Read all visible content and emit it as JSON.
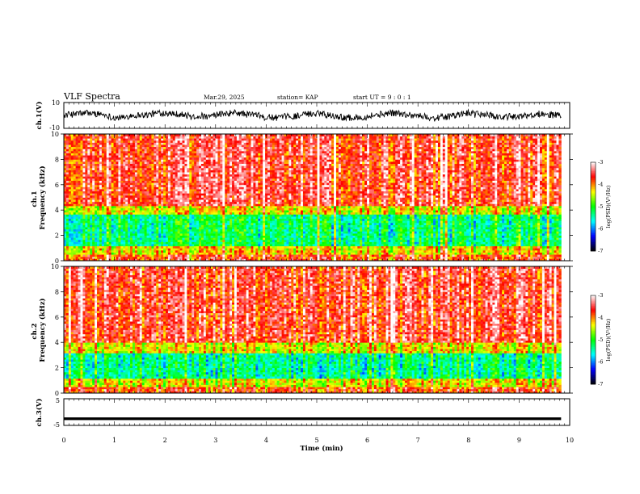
{
  "header": {
    "title": "VLF Spectra",
    "date": "Mar.29, 2025",
    "station": "station= KAP",
    "start_ut": "start  UT =  9 : 0 : 1"
  },
  "chart_data": [
    {
      "type": "line",
      "panel": "ch1-waveform",
      "ylabel": "ch.1(V)",
      "ylim": [
        -10,
        10
      ],
      "tick_labels": [
        "10",
        "-10"
      ],
      "x_range_min": [
        0,
        9.83
      ],
      "noise_amplitude": 5.0,
      "color": "#000000"
    },
    {
      "type": "heatmap",
      "panel": "ch1-spectrogram",
      "ylabel": "ch.1\nFrequency (kHz)",
      "ylim_khz": [
        0,
        10
      ],
      "y_tick_labels": [
        "0",
        "2",
        "4",
        "6",
        "8",
        "10"
      ],
      "x_range_min": [
        0,
        9.83
      ],
      "bands": [
        {
          "from_khz": 0.0,
          "to_khz": 0.5,
          "log_psd": -3.8
        },
        {
          "from_khz": 0.5,
          "to_khz": 1.2,
          "log_psd": -4.3
        },
        {
          "from_khz": 1.2,
          "to_khz": 3.6,
          "log_psd": -5.3
        },
        {
          "from_khz": 3.6,
          "to_khz": 4.3,
          "log_psd": -4.4
        },
        {
          "from_khz": 4.3,
          "to_khz": 10.0,
          "log_psd": -3.6
        }
      ],
      "colorbar": {
        "label": "log(PSD)(V²/Hz)",
        "min": -7,
        "max": -3,
        "ticks": [
          "-3",
          "-4",
          "-5",
          "-6",
          "-7"
        ],
        "stops": [
          "#000000",
          "#0000ff",
          "#00ffff",
          "#00ff00",
          "#ffff00",
          "#ff0000",
          "#ffffff"
        ]
      }
    },
    {
      "type": "heatmap",
      "panel": "ch2-spectrogram",
      "ylabel": "ch.2\nFrequency (kHz)",
      "ylim_khz": [
        0,
        10
      ],
      "y_tick_labels": [
        "0",
        "2",
        "4",
        "6",
        "8",
        "10"
      ],
      "x_range_min": [
        0,
        9.83
      ],
      "bands": [
        {
          "from_khz": 0.0,
          "to_khz": 0.5,
          "log_psd": -3.8
        },
        {
          "from_khz": 0.5,
          "to_khz": 1.2,
          "log_psd": -4.4
        },
        {
          "from_khz": 1.2,
          "to_khz": 3.2,
          "log_psd": -5.4
        },
        {
          "from_khz": 3.2,
          "to_khz": 4.0,
          "log_psd": -4.4
        },
        {
          "from_khz": 4.0,
          "to_khz": 10.0,
          "log_psd": -3.6
        }
      ],
      "colorbar": {
        "label": "log(PSD)(V²/Hz)",
        "min": -7,
        "max": -3,
        "ticks": [
          "-3",
          "-4",
          "-5",
          "-6",
          "-7"
        ],
        "stops": [
          "#000000",
          "#0000ff",
          "#00ffff",
          "#00ff00",
          "#ffff00",
          "#ff0000",
          "#ffffff"
        ]
      }
    },
    {
      "type": "line",
      "panel": "ch3-waveform",
      "ylabel": "ch.3(V)",
      "ylim": [
        -5,
        5
      ],
      "tick_labels": [
        "5",
        "-5"
      ],
      "x_range_min": [
        0,
        9.83
      ],
      "center_value": -2.5,
      "band_half_width": 0.5,
      "color": "#000000"
    }
  ],
  "x_axis": {
    "label": "Time (min)",
    "xlim": [
      0,
      10
    ],
    "tick_labels": [
      "0",
      "1",
      "2",
      "3",
      "4",
      "5",
      "6",
      "7",
      "8",
      "9",
      "10"
    ]
  }
}
